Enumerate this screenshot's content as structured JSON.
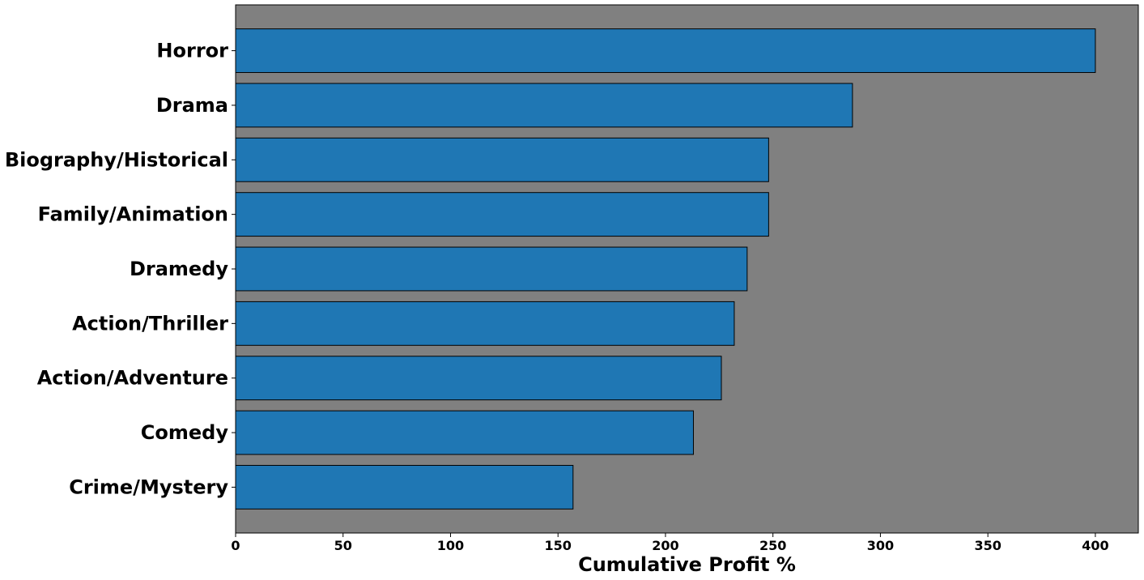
{
  "chart_data": {
    "type": "bar",
    "orientation": "horizontal",
    "categories": [
      "Horror",
      "Drama",
      "Biography/Historical",
      "Family/Animation",
      "Dramedy",
      "Action/Thriller",
      "Action/Adventure",
      "Comedy",
      "Crime/Mystery"
    ],
    "values": [
      400,
      287,
      248,
      248,
      238,
      232,
      226,
      213,
      157
    ],
    "xlabel": "Cumulative Profit %",
    "ylabel": "",
    "title": "",
    "xlim": [
      0,
      420
    ],
    "xticks": [
      0,
      50,
      100,
      150,
      200,
      250,
      300,
      350,
      400
    ],
    "grid": false,
    "legend": "none",
    "colors": {
      "bar": "#1f77b4",
      "bar_edge": "#000000",
      "plot_background": "#808080",
      "figure_background": "#ffffff"
    }
  }
}
